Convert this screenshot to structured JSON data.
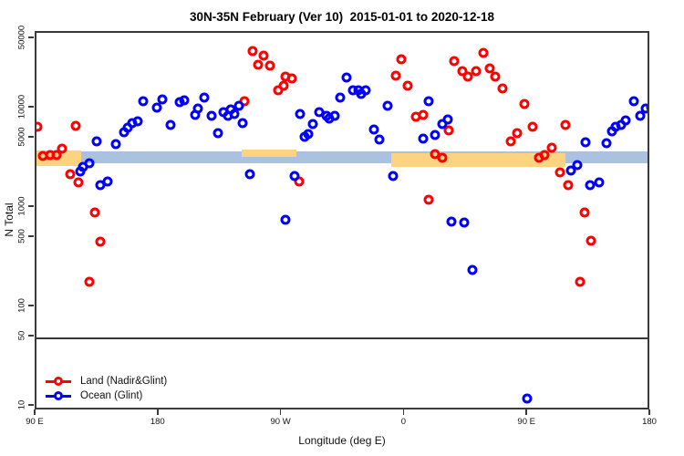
{
  "title": "30N-35N February (Ver 10)  2015-01-01 to 2020-12-18",
  "legend": {
    "items": [
      {
        "label": "Land (Nadir&Glint)",
        "color": "#ff0000"
      },
      {
        "label": "Ocean (Glint)",
        "color": "#0000ff"
      }
    ]
  },
  "chart_data": {
    "type": "scatter",
    "title": "30N-35N February (Ver 10)  2015-01-01 to 2020-12-18",
    "xlabel": "Longitude (deg E)",
    "ylabel": "N Total",
    "x_axis": {
      "range_deg": [
        90,
        540
      ],
      "ticks_deg": [
        90,
        180,
        270,
        360,
        450,
        540
      ],
      "tick_labels": [
        "90 E",
        "180",
        "90 W",
        "0",
        "90 E",
        "180"
      ]
    },
    "y_axis": {
      "scale": "log",
      "range": [
        10,
        55000
      ],
      "ticks": [
        10,
        50,
        100,
        500,
        1000,
        5000,
        10000,
        50000
      ],
      "tick_labels": [
        "10",
        "50",
        "100",
        "500",
        "1000",
        "5000",
        "10000",
        "50000"
      ]
    },
    "threshold_line_y": 50,
    "bands": {
      "ocean_band": {
        "name": "ocean-coverage-band",
        "color": "#aac2e0",
        "segments": [
          {
            "deg": [
              90,
              540
            ],
            "v": [
              2790,
              3670
            ]
          }
        ]
      },
      "land_band": {
        "name": "land-coverage-band",
        "color": "#fcd47f",
        "segments": [
          {
            "deg": [
              90,
              123
            ],
            "v": [
              2650,
              3800
            ]
          },
          {
            "deg": [
              240,
              280
            ],
            "v": [
              3260,
              3880
            ]
          },
          {
            "deg": [
              350,
              477
            ],
            "v": [
              2590,
              3550
            ]
          }
        ]
      }
    },
    "series": [
      {
        "name": "Land (Nadir&Glint)",
        "color": "#ff0000",
        "points": [
          [
            91,
            6600
          ],
          [
            119,
            6700
          ],
          [
            109,
            3950
          ],
          [
            105,
            3400
          ],
          [
            100,
            3400
          ],
          [
            95,
            3300
          ],
          [
            115,
            2200
          ],
          [
            121,
            1800
          ],
          [
            133,
            900
          ],
          [
            137,
            460
          ],
          [
            129,
            180
          ],
          [
            248,
            38000
          ],
          [
            256,
            34000
          ],
          [
            252,
            27500
          ],
          [
            261,
            27000
          ],
          [
            272,
            21000
          ],
          [
            277,
            20000
          ],
          [
            271,
            16800
          ],
          [
            267,
            15400
          ],
          [
            242,
            11800
          ],
          [
            282,
            1830
          ],
          [
            357,
            31000
          ],
          [
            417,
            36000
          ],
          [
            396,
            30000
          ],
          [
            402,
            24000
          ],
          [
            412,
            24000
          ],
          [
            406,
            21000
          ],
          [
            422,
            25500
          ],
          [
            426,
            21000
          ],
          [
            431,
            16000
          ],
          [
            353,
            21400
          ],
          [
            362,
            17000
          ],
          [
            447,
            11000
          ],
          [
            368,
            8300
          ],
          [
            373,
            8700
          ],
          [
            392,
            6000
          ],
          [
            442,
            5700
          ],
          [
            437,
            4700
          ],
          [
            382,
            3500
          ],
          [
            387,
            3200
          ],
          [
            377,
            1200
          ],
          [
            453,
            6600
          ],
          [
            477,
            6800
          ],
          [
            467,
            4000
          ],
          [
            462,
            3400
          ],
          [
            458,
            3200
          ],
          [
            473,
            2300
          ],
          [
            479,
            1700
          ],
          [
            491,
            900
          ],
          [
            496,
            465
          ],
          [
            488,
            180
          ]
        ]
      },
      {
        "name": "Ocean (Glint)",
        "color": "#0000ff",
        "points": [
          [
            168,
            11800
          ],
          [
            182,
            12400
          ],
          [
            178,
            10200
          ],
          [
            195,
            11600
          ],
          [
            198,
            12200
          ],
          [
            206,
            8600
          ],
          [
            188,
            6800
          ],
          [
            164,
            7400
          ],
          [
            160,
            7100
          ],
          [
            157,
            6400
          ],
          [
            154,
            5800
          ],
          [
            148,
            4400
          ],
          [
            134,
            4650
          ],
          [
            129,
            2800
          ],
          [
            124,
            2600
          ],
          [
            122,
            2340
          ],
          [
            142,
            1830
          ],
          [
            137,
            1700
          ],
          [
            213,
            12900
          ],
          [
            208,
            10100
          ],
          [
            218,
            8450
          ],
          [
            227,
            9200
          ],
          [
            232,
            9700
          ],
          [
            230,
            8450
          ],
          [
            235,
            8750
          ],
          [
            238,
            10600
          ],
          [
            241,
            7100
          ],
          [
            223,
            5600
          ],
          [
            317,
            20600
          ],
          [
            322,
            15300
          ],
          [
            326,
            15300
          ],
          [
            312,
            12900
          ],
          [
            283,
            8900
          ],
          [
            297,
            9200
          ],
          [
            302,
            8450
          ],
          [
            304,
            7900
          ],
          [
            308,
            8450
          ],
          [
            292,
            7000
          ],
          [
            289,
            5500
          ],
          [
            286,
            5200
          ],
          [
            246,
            2200
          ],
          [
            279,
            2100
          ],
          [
            272,
            760
          ],
          [
            331,
            15300
          ],
          [
            328,
            14100
          ],
          [
            347,
            10600
          ],
          [
            377,
            11800
          ],
          [
            391,
            7700
          ],
          [
            387,
            7000
          ],
          [
            337,
            6200
          ],
          [
            341,
            4900
          ],
          [
            373,
            5000
          ],
          [
            382,
            5400
          ],
          [
            351,
            2100
          ],
          [
            394,
            730
          ],
          [
            403,
            710
          ],
          [
            409,
            240
          ],
          [
            449,
            12
          ],
          [
            527,
            11800
          ],
          [
            536,
            9900
          ],
          [
            540,
            10200
          ],
          [
            532,
            8450
          ],
          [
            521,
            7600
          ],
          [
            518,
            6900
          ],
          [
            514,
            6600
          ],
          [
            511,
            5900
          ],
          [
            492,
            4600
          ],
          [
            507,
            4500
          ],
          [
            486,
            2700
          ],
          [
            481,
            2400
          ],
          [
            502,
            1820
          ],
          [
            495,
            1700
          ]
        ]
      }
    ]
  }
}
